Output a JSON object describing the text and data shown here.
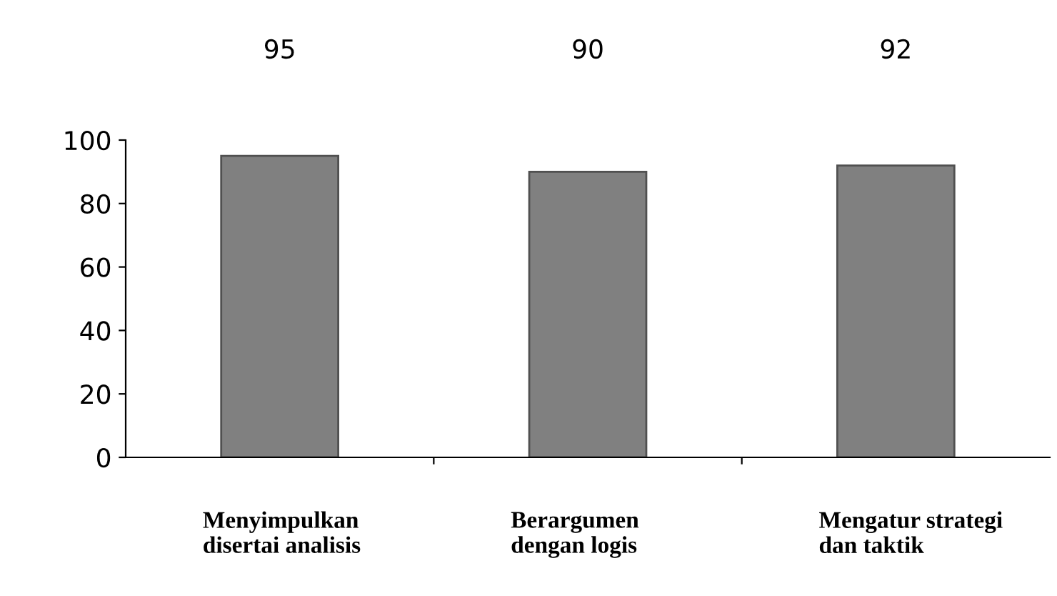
{
  "chart_data": {
    "type": "bar",
    "categories": [
      "Menyimpulkan\ndisertai analisis",
      "Berargumen\ndengan logis",
      "Mengatur strategi\ndan taktik"
    ],
    "values": [
      95,
      90,
      92
    ],
    "color": "#808080",
    "ylim": [
      0,
      100
    ],
    "yticks": [
      0,
      20,
      40,
      60,
      80,
      100
    ],
    "grid": false,
    "data_labels": true
  }
}
